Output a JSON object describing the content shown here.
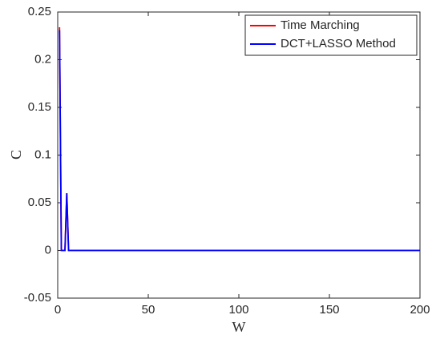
{
  "chart_data": {
    "type": "line",
    "x": [
      1,
      2,
      3,
      4,
      5,
      6,
      200
    ],
    "series": [
      {
        "name": "Time Marching",
        "color": "#ff0000",
        "values": [
          0.234,
          0,
          0,
          0,
          0.06,
          0,
          0
        ]
      },
      {
        "name": "DCT+LASSO Method",
        "color": "#0000ff",
        "values": [
          0.231,
          0,
          0,
          0,
          0.06,
          0,
          0
        ]
      }
    ],
    "xlabel": "W",
    "ylabel": "C",
    "xlim": [
      0,
      200
    ],
    "xticks": [
      0,
      50,
      100,
      150,
      200
    ],
    "ylim": [
      -0.05,
      0.25
    ],
    "yticks": [
      -0.05,
      0,
      0.05,
      0.1,
      0.15,
      0.2,
      0.25
    ],
    "legend": "northeast"
  }
}
